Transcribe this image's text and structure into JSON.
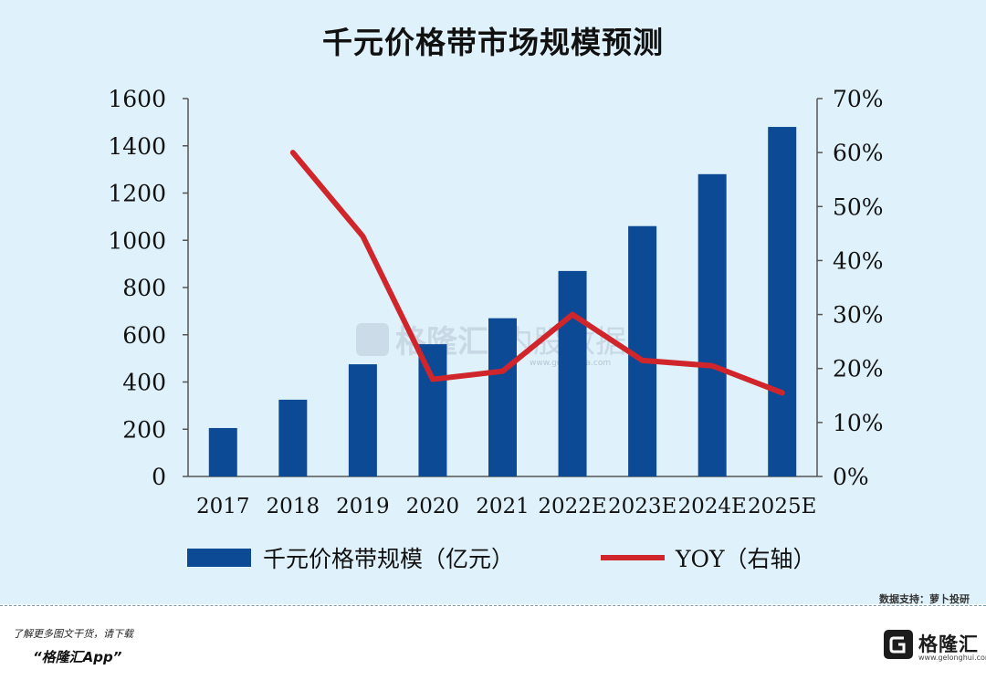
{
  "chart_data": {
    "type": "bar+line",
    "title": "千元价格带市场规模预测",
    "categories": [
      "2017",
      "2018",
      "2019",
      "2020",
      "2021",
      "2022E",
      "2023E",
      "2024E",
      "2025E"
    ],
    "series": [
      {
        "name": "千元价格带规模（亿元）",
        "type": "bar",
        "axis": "left",
        "color": "#0d4a96",
        "values": [
          205,
          325,
          475,
          560,
          670,
          870,
          1060,
          1280,
          1480
        ]
      },
      {
        "name": "YOY（右轴）",
        "type": "line",
        "axis": "right",
        "color": "#d0262b",
        "values": [
          null,
          60,
          44.5,
          18,
          19.5,
          30,
          21.5,
          20.5,
          15.5
        ]
      }
    ],
    "y_left": {
      "min": 0,
      "max": 1600,
      "ticks": [
        0,
        200,
        400,
        600,
        800,
        1000,
        1200,
        1400,
        1600
      ]
    },
    "y_right": {
      "min": 0,
      "max": 70,
      "ticks": [
        "0%",
        "10%",
        "20%",
        "30%",
        "40%",
        "50%",
        "60%",
        "70%"
      ],
      "unit": "%"
    },
    "legend_position": "bottom",
    "grid": false
  },
  "source_note": "数据支持：萝卜投研",
  "watermark": {
    "brand": "格隆汇",
    "text": "内股数据",
    "url": "www.gogudata.com"
  },
  "footer": {
    "line1": "了解更多图文干货，请下载",
    "line2": "“格隆汇App”",
    "brand": "格隆汇",
    "brand_url": "www.gelonghui.com"
  }
}
